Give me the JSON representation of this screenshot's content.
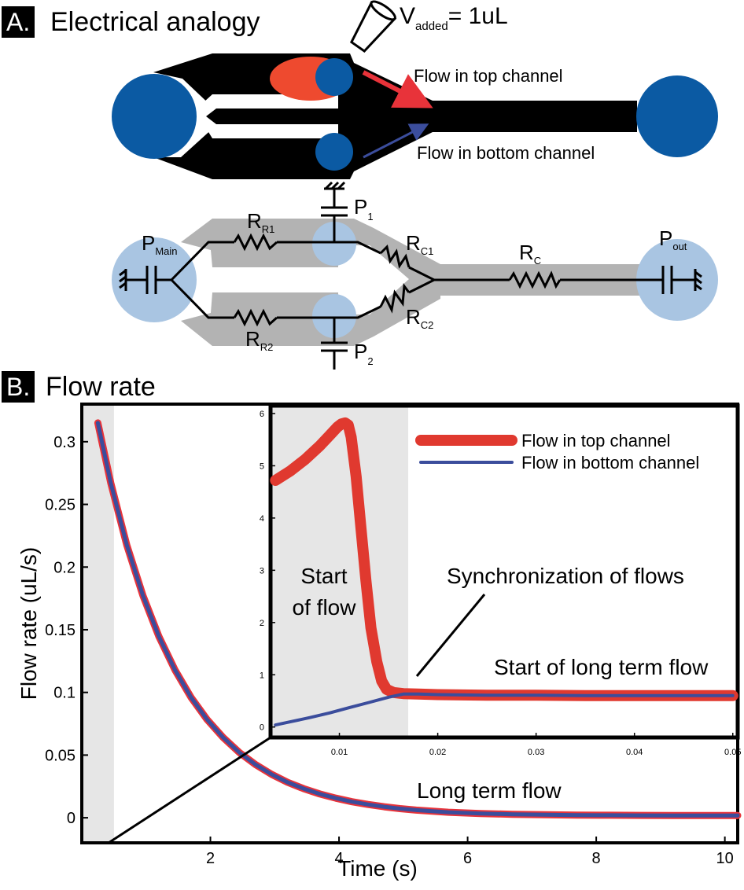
{
  "panel_a": {
    "letter": "A.",
    "title": "Electrical analogy",
    "pipette_label_main": "V",
    "pipette_label_sub": "added",
    "pipette_label_rest": "= 1uL",
    "flow_top_label": "Flow in top channel",
    "flow_bottom_label": "Flow in bottom channel",
    "circuit": {
      "p_main": "P",
      "p_main_sub": "Main",
      "p_out": "P",
      "p_out_sub": "out",
      "p1": "P",
      "p1_sub": "1",
      "p2": "P",
      "p2_sub": "2",
      "rr1": "R",
      "rr1_sub": "R1",
      "rr2": "R",
      "rr2_sub": "R2",
      "rc1": "R",
      "rc1_sub": "C1",
      "rc2": "R",
      "rc2_sub": "C2",
      "rc": "R",
      "rc_sub": "C"
    },
    "colors": {
      "channel": "#000000",
      "reservoir": "#0b5aa3",
      "drop": "#ee4a2f",
      "flow_top_arrow": "#e8333a",
      "flow_bottom_arrow": "#3b4d9c",
      "circuit_band": "#b3b3b3",
      "circuit_node": "#a9c5e2"
    }
  },
  "panel_b": {
    "letter": "B.",
    "title": "Flow rate"
  },
  "chart_data": [
    {
      "type": "line",
      "title": "",
      "xlabel": "Time (s)",
      "ylabel": "Flow rate (uL/s)",
      "xlim": [
        0,
        10.2
      ],
      "ylim": [
        -0.02,
        0.33
      ],
      "xticks": [
        2,
        4,
        6,
        8,
        10
      ],
      "xtick_labels": [
        "2",
        "4",
        "6",
        "8",
        "10"
      ],
      "yticks": [
        0,
        0.05,
        0.1,
        0.15,
        0.2,
        0.25,
        0.3
      ],
      "ytick_labels": [
        "0",
        "0.05",
        "0.1",
        "0.15",
        "0.2",
        "0.25",
        "0.3"
      ],
      "grid": false,
      "shaded_x_range": [
        0,
        0.05
      ],
      "annotation": "Long term flow",
      "series": [
        {
          "name": "Flow in top channel",
          "color": "#e8333a",
          "x": [
            0.05,
            0.25,
            0.5,
            0.75,
            1.0,
            1.25,
            1.5,
            1.75,
            2.0,
            2.25,
            2.5,
            2.75,
            3.0,
            3.25,
            3.5,
            3.75,
            4.0,
            4.25,
            4.5,
            4.75,
            5.0,
            5.5,
            6.0,
            6.5,
            7.0,
            7.5,
            8.0,
            8.5,
            9.0,
            9.5,
            10.0
          ],
          "y": [
            0.315,
            0.2672,
            0.2176,
            0.1773,
            0.1445,
            0.1178,
            0.096,
            0.0783,
            0.0639,
            0.0521,
            0.0425,
            0.0347,
            0.0283,
            0.0232,
            0.019,
            0.0156,
            0.0128,
            0.0106,
            0.0088,
            0.0073,
            0.0061,
            0.0044,
            0.0034,
            0.0028,
            0.0024,
            0.0021,
            0.002,
            0.0019,
            0.0018,
            0.0018,
            0.0018
          ]
        },
        {
          "name": "Flow in bottom channel",
          "color": "#3b4d9c",
          "x": [
            0.05,
            0.25,
            0.5,
            0.75,
            1.0,
            1.25,
            1.5,
            1.75,
            2.0,
            2.25,
            2.5,
            2.75,
            3.0,
            3.25,
            3.5,
            3.75,
            4.0,
            4.25,
            4.5,
            4.75,
            5.0,
            5.5,
            6.0,
            6.5,
            7.0,
            7.5,
            8.0,
            8.5,
            9.0,
            9.5,
            10.0
          ],
          "y": [
            0.315,
            0.2672,
            0.2176,
            0.1773,
            0.1445,
            0.1178,
            0.096,
            0.0783,
            0.0639,
            0.0521,
            0.0425,
            0.0347,
            0.0283,
            0.0232,
            0.019,
            0.0156,
            0.0128,
            0.0106,
            0.0088,
            0.0073,
            0.0061,
            0.0044,
            0.0034,
            0.0028,
            0.0024,
            0.0021,
            0.002,
            0.0019,
            0.0018,
            0.0018,
            0.0018
          ]
        }
      ]
    },
    {
      "type": "line",
      "title": "",
      "xlabel": "",
      "ylabel": "",
      "xlim": [
        0.003,
        0.0505
      ],
      "ylim": [
        -0.2,
        6.15
      ],
      "xticks": [
        0.01,
        0.02,
        0.03,
        0.04,
        0.05
      ],
      "xtick_labels": [
        "0.01",
        "0.02",
        "0.03",
        "0.04",
        "0.05"
      ],
      "yticks": [
        0,
        1,
        2,
        3,
        4,
        5,
        6
      ],
      "ytick_labels": [
        "0",
        "1",
        "2",
        "3",
        "4",
        "5",
        "6"
      ],
      "grid": false,
      "legend_position": "top-right",
      "shaded_x_range": [
        0.003,
        0.017
      ],
      "shaded_label": "Start\nof flow",
      "annotations": [
        "Synchronization of flows",
        "Start of long term flow"
      ],
      "series": [
        {
          "name": "Flow in top channel",
          "color": "#e0392f",
          "x": [
            0.0035,
            0.005,
            0.0065,
            0.008,
            0.009,
            0.0098,
            0.0102,
            0.0106,
            0.0109,
            0.0112,
            0.0117,
            0.0122,
            0.0127,
            0.0132,
            0.0138,
            0.0143,
            0.0148,
            0.0155,
            0.0165,
            0.018,
            0.02,
            0.025,
            0.03,
            0.035,
            0.04,
            0.045,
            0.05
          ],
          "y": [
            4.72,
            4.9,
            5.12,
            5.38,
            5.58,
            5.74,
            5.8,
            5.82,
            5.78,
            5.55,
            4.8,
            3.8,
            2.8,
            1.9,
            1.25,
            0.88,
            0.72,
            0.66,
            0.64,
            0.63,
            0.62,
            0.61,
            0.61,
            0.6,
            0.6,
            0.6,
            0.6
          ]
        },
        {
          "name": "Flow in bottom channel",
          "color": "#3b4d9c",
          "x": [
            0.0035,
            0.005,
            0.007,
            0.009,
            0.011,
            0.013,
            0.015,
            0.0165,
            0.018,
            0.02,
            0.025,
            0.03,
            0.035,
            0.04,
            0.045,
            0.05
          ],
          "y": [
            0.04,
            0.1,
            0.18,
            0.27,
            0.37,
            0.47,
            0.57,
            0.63,
            0.63,
            0.62,
            0.61,
            0.61,
            0.6,
            0.6,
            0.6,
            0.6
          ]
        }
      ]
    }
  ]
}
